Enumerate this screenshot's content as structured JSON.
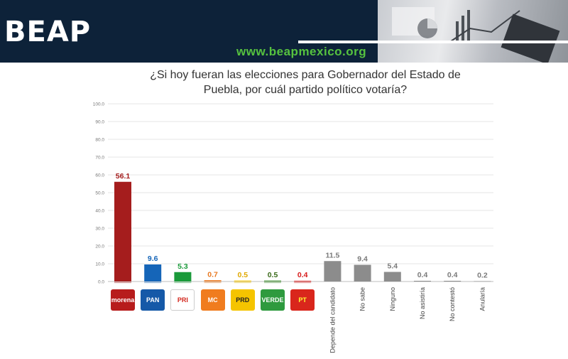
{
  "header": {
    "logo": "BEAP",
    "url": "www.beapmexico.org"
  },
  "colors": {
    "header_bg": "#0d2239",
    "url_green": "#56c23f"
  },
  "chart_data": {
    "type": "bar",
    "title_line1": "¿Si hoy fueran las elecciones para Gobernador del Estado de",
    "title_line2": "Puebla, por cuál partido político votaría?",
    "ylim": [
      0,
      100
    ],
    "yticks": [
      "0.0",
      "10.0",
      "20.0",
      "30.0",
      "40.0",
      "50.0",
      "60.0",
      "70.0",
      "80.0",
      "90.0",
      "100.0"
    ],
    "grid": true,
    "categories": [
      "Morena",
      "PAN",
      "PRI",
      "MC",
      "PRD",
      "Verde",
      "PT",
      "Depende del candidato",
      "No sabe",
      "Ninguno",
      "No asistiría",
      "No contestó",
      "Anularía"
    ],
    "values": [
      56.1,
      9.6,
      5.3,
      0.7,
      0.5,
      0.5,
      0.4,
      11.5,
      9.4,
      5.4,
      0.4,
      0.4,
      0.2
    ],
    "value_labels": [
      "56.1",
      "9.6",
      "5.3",
      "0.7",
      "0.5",
      "0.5",
      "0.4",
      "11.5",
      "9.4",
      "5.4",
      "0.4",
      "0.4",
      "0.2"
    ],
    "colors": [
      "#a51d1d",
      "#1565b8",
      "#1a9a3a",
      "#e8771e",
      "#f2c200",
      "#3a8a2a",
      "#d71a1a",
      "#8c8c8c",
      "#8c8c8c",
      "#8c8c8c",
      "#8c8c8c",
      "#8c8c8c",
      "#8c8c8c"
    ],
    "label_colors": [
      "#a51d1d",
      "#1565b8",
      "#1a9a3a",
      "#e8771e",
      "#e0a800",
      "#3a6a1a",
      "#d71a1a",
      "#7a7a7a",
      "#7a7a7a",
      "#7a7a7a",
      "#7a7a7a",
      "#7a7a7a",
      "#7a7a7a"
    ],
    "party_logos": [
      {
        "text": "morena",
        "bg": "#b71c1c",
        "fg": "#ffffff"
      },
      {
        "text": "PAN",
        "bg": "#1559a8",
        "fg": "#ffffff"
      },
      {
        "text": "PRI",
        "bg": "#ffffff",
        "fg": "#d3261c"
      },
      {
        "text": "MC",
        "bg": "#f07c1e",
        "fg": "#ffffff"
      },
      {
        "text": "PRD",
        "bg": "#f5c400",
        "fg": "#222222"
      },
      {
        "text": "VERDE",
        "bg": "#2e9a3e",
        "fg": "#ffffff"
      },
      {
        "text": "PT",
        "bg": "#d9261c",
        "fg": "#ffff33"
      }
    ],
    "text_categories": [
      "Depende del candidato",
      "No sabe",
      "Ninguno",
      "No asistiría",
      "No contestó",
      "Anularía"
    ]
  }
}
